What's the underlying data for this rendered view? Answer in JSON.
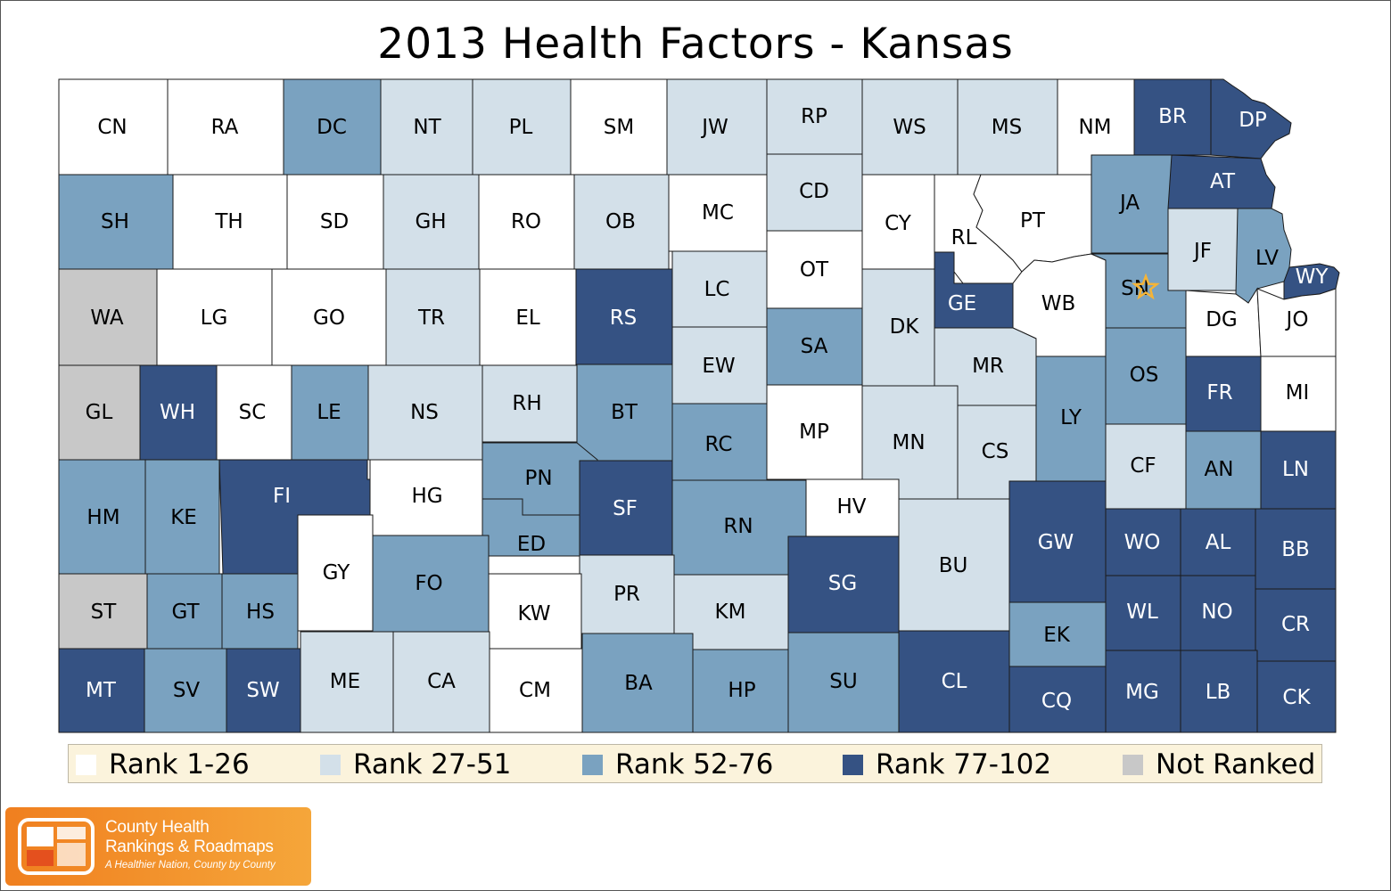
{
  "title": "2013 Health Factors - Kansas",
  "colors": {
    "rank_1_26": "#ffffff",
    "rank_27_51": "#d3e0e9",
    "rank_52_76": "#7aa2c0",
    "rank_77_102": "#355283",
    "not_ranked": "#c8c8c8",
    "border": "#1a1a1a",
    "highlight_star": "#f5b437"
  },
  "legend": [
    {
      "label": "Rank 1-26",
      "category": "rank_1_26"
    },
    {
      "label": "Rank 27-51",
      "category": "rank_27_51"
    },
    {
      "label": "Rank 52-76",
      "category": "rank_52_76"
    },
    {
      "label": "Rank 77-102",
      "category": "rank_77_102"
    },
    {
      "label": "Not Ranked",
      "category": "not_ranked"
    }
  ],
  "counties": [
    {
      "label": "CN",
      "category": "rank_1_26"
    },
    {
      "label": "RA",
      "category": "rank_1_26"
    },
    {
      "label": "DC",
      "category": "rank_52_76"
    },
    {
      "label": "NT",
      "category": "rank_27_51"
    },
    {
      "label": "PL",
      "category": "rank_27_51"
    },
    {
      "label": "SM",
      "category": "rank_1_26"
    },
    {
      "label": "JW",
      "category": "rank_27_51"
    },
    {
      "label": "RP",
      "category": "rank_27_51"
    },
    {
      "label": "WS",
      "category": "rank_27_51"
    },
    {
      "label": "MS",
      "category": "rank_27_51"
    },
    {
      "label": "NM",
      "category": "rank_1_26"
    },
    {
      "label": "BR",
      "category": "rank_77_102"
    },
    {
      "label": "DP",
      "category": "rank_77_102"
    },
    {
      "label": "SH",
      "category": "rank_52_76"
    },
    {
      "label": "TH",
      "category": "rank_1_26"
    },
    {
      "label": "SD",
      "category": "rank_1_26"
    },
    {
      "label": "GH",
      "category": "rank_27_51"
    },
    {
      "label": "RO",
      "category": "rank_1_26"
    },
    {
      "label": "OB",
      "category": "rank_27_51"
    },
    {
      "label": "MC",
      "category": "rank_1_26"
    },
    {
      "label": "CD",
      "category": "rank_27_51"
    },
    {
      "label": "CY",
      "category": "rank_1_26"
    },
    {
      "label": "RL",
      "category": "rank_1_26"
    },
    {
      "label": "PT",
      "category": "rank_1_26"
    },
    {
      "label": "JA",
      "category": "rank_52_76"
    },
    {
      "label": "AT",
      "category": "rank_77_102"
    },
    {
      "label": "JF",
      "category": "rank_27_51"
    },
    {
      "label": "LV",
      "category": "rank_52_76"
    },
    {
      "label": "WY",
      "category": "rank_77_102"
    },
    {
      "label": "WA",
      "category": "not_ranked"
    },
    {
      "label": "LG",
      "category": "rank_1_26"
    },
    {
      "label": "GO",
      "category": "rank_1_26"
    },
    {
      "label": "TR",
      "category": "rank_27_51"
    },
    {
      "label": "EL",
      "category": "rank_1_26"
    },
    {
      "label": "RS",
      "category": "rank_77_102"
    },
    {
      "label": "LC",
      "category": "rank_27_51"
    },
    {
      "label": "OT",
      "category": "rank_1_26"
    },
    {
      "label": "DK",
      "category": "rank_27_51"
    },
    {
      "label": "GE",
      "category": "rank_77_102"
    },
    {
      "label": "WB",
      "category": "rank_1_26"
    },
    {
      "label": "SN",
      "category": "rank_52_76"
    },
    {
      "label": "DG",
      "category": "rank_1_26"
    },
    {
      "label": "JO",
      "category": "rank_1_26"
    },
    {
      "label": "GL",
      "category": "not_ranked"
    },
    {
      "label": "WH",
      "category": "rank_77_102"
    },
    {
      "label": "SC",
      "category": "rank_1_26"
    },
    {
      "label": "LE",
      "category": "rank_52_76"
    },
    {
      "label": "NS",
      "category": "rank_27_51"
    },
    {
      "label": "RH",
      "category": "rank_27_51"
    },
    {
      "label": "BT",
      "category": "rank_52_76"
    },
    {
      "label": "EW",
      "category": "rank_27_51"
    },
    {
      "label": "SA",
      "category": "rank_52_76"
    },
    {
      "label": "MR",
      "category": "rank_27_51"
    },
    {
      "label": "OS",
      "category": "rank_52_76"
    },
    {
      "label": "FR",
      "category": "rank_77_102"
    },
    {
      "label": "MI",
      "category": "rank_1_26"
    },
    {
      "label": "RC",
      "category": "rank_52_76"
    },
    {
      "label": "MP",
      "category": "rank_1_26"
    },
    {
      "label": "MN",
      "category": "rank_27_51"
    },
    {
      "label": "CS",
      "category": "rank_27_51"
    },
    {
      "label": "LY",
      "category": "rank_52_76"
    },
    {
      "label": "CF",
      "category": "rank_27_51"
    },
    {
      "label": "AN",
      "category": "rank_52_76"
    },
    {
      "label": "LN",
      "category": "rank_77_102"
    },
    {
      "label": "HM",
      "category": "rank_52_76"
    },
    {
      "label": "KE",
      "category": "rank_52_76"
    },
    {
      "label": "FI",
      "category": "rank_77_102"
    },
    {
      "label": "HG",
      "category": "rank_1_26"
    },
    {
      "label": "PN",
      "category": "rank_52_76"
    },
    {
      "label": "SF",
      "category": "rank_77_102"
    },
    {
      "label": "RN",
      "category": "rank_52_76"
    },
    {
      "label": "HV",
      "category": "rank_1_26"
    },
    {
      "label": "BU",
      "category": "rank_27_51"
    },
    {
      "label": "GW",
      "category": "rank_77_102"
    },
    {
      "label": "WO",
      "category": "rank_77_102"
    },
    {
      "label": "AL",
      "category": "rank_77_102"
    },
    {
      "label": "BB",
      "category": "rank_77_102"
    },
    {
      "label": "GY",
      "category": "rank_1_26"
    },
    {
      "label": "ED",
      "category": "rank_52_76"
    },
    {
      "label": "FO",
      "category": "rank_52_76"
    },
    {
      "label": "PR",
      "category": "rank_27_51"
    },
    {
      "label": "SG",
      "category": "rank_77_102"
    },
    {
      "label": "ST",
      "category": "not_ranked"
    },
    {
      "label": "GT",
      "category": "rank_52_76"
    },
    {
      "label": "HS",
      "category": "rank_52_76"
    },
    {
      "label": "KW",
      "category": "rank_1_26"
    },
    {
      "label": "KM",
      "category": "rank_27_51"
    },
    {
      "label": "EK",
      "category": "rank_52_76"
    },
    {
      "label": "WL",
      "category": "rank_77_102"
    },
    {
      "label": "NO",
      "category": "rank_77_102"
    },
    {
      "label": "CR",
      "category": "rank_77_102"
    },
    {
      "label": "MT",
      "category": "rank_77_102"
    },
    {
      "label": "SV",
      "category": "rank_52_76"
    },
    {
      "label": "SW",
      "category": "rank_77_102"
    },
    {
      "label": "ME",
      "category": "rank_27_51"
    },
    {
      "label": "CA",
      "category": "rank_27_51"
    },
    {
      "label": "CM",
      "category": "rank_1_26"
    },
    {
      "label": "BA",
      "category": "rank_52_76"
    },
    {
      "label": "HP",
      "category": "rank_52_76"
    },
    {
      "label": "SU",
      "category": "rank_52_76"
    },
    {
      "label": "CL",
      "category": "rank_77_102"
    },
    {
      "label": "CQ",
      "category": "rank_77_102"
    },
    {
      "label": "MG",
      "category": "rank_77_102"
    },
    {
      "label": "LB",
      "category": "rank_77_102"
    },
    {
      "label": "CK",
      "category": "rank_77_102"
    }
  ],
  "highlighted_county": "SN",
  "logo": {
    "line1": "County Health",
    "line2": "Rankings & Roadmaps",
    "tagline": "A Healthier Nation, County by County"
  }
}
